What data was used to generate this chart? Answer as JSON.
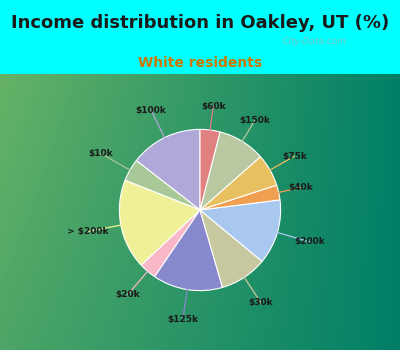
{
  "title": "Income distribution in Oakley, UT (%)",
  "subtitle": "White residents",
  "title_fontsize": 13,
  "subtitle_fontsize": 10,
  "title_color": "#1a1a1a",
  "subtitle_color": "#cc7700",
  "bg_cyan": "#00FFFF",
  "chart_bg": "#d8ede0",
  "labels": [
    "$100k",
    "$10k",
    "> $200k",
    "$20k",
    "$125k",
    "$30k",
    "$200k",
    "$40k",
    "$75k",
    "$150k",
    "$60k"
  ],
  "sizes": [
    14.5,
    4.5,
    18.0,
    3.5,
    14.0,
    9.5,
    13.0,
    3.0,
    6.5,
    9.5,
    4.0
  ],
  "colors": [
    "#b0a8d8",
    "#a8c898",
    "#f0f098",
    "#f8b8c8",
    "#8888cc",
    "#c8c8a0",
    "#a8c8f0",
    "#f0a050",
    "#e8c060",
    "#b8c8a0",
    "#e08080"
  ],
  "label_colors": [
    "#b0a8d8",
    "#a8c898",
    "#f0f098",
    "#f8b8c8",
    "#8888cc",
    "#c8c8a0",
    "#a8c8f0",
    "#f0a050",
    "#e8c060",
    "#b8c8a0",
    "#e08080"
  ],
  "startangle": 90,
  "wedge_linewidth": 0.8,
  "wedge_edgecolor": "white"
}
